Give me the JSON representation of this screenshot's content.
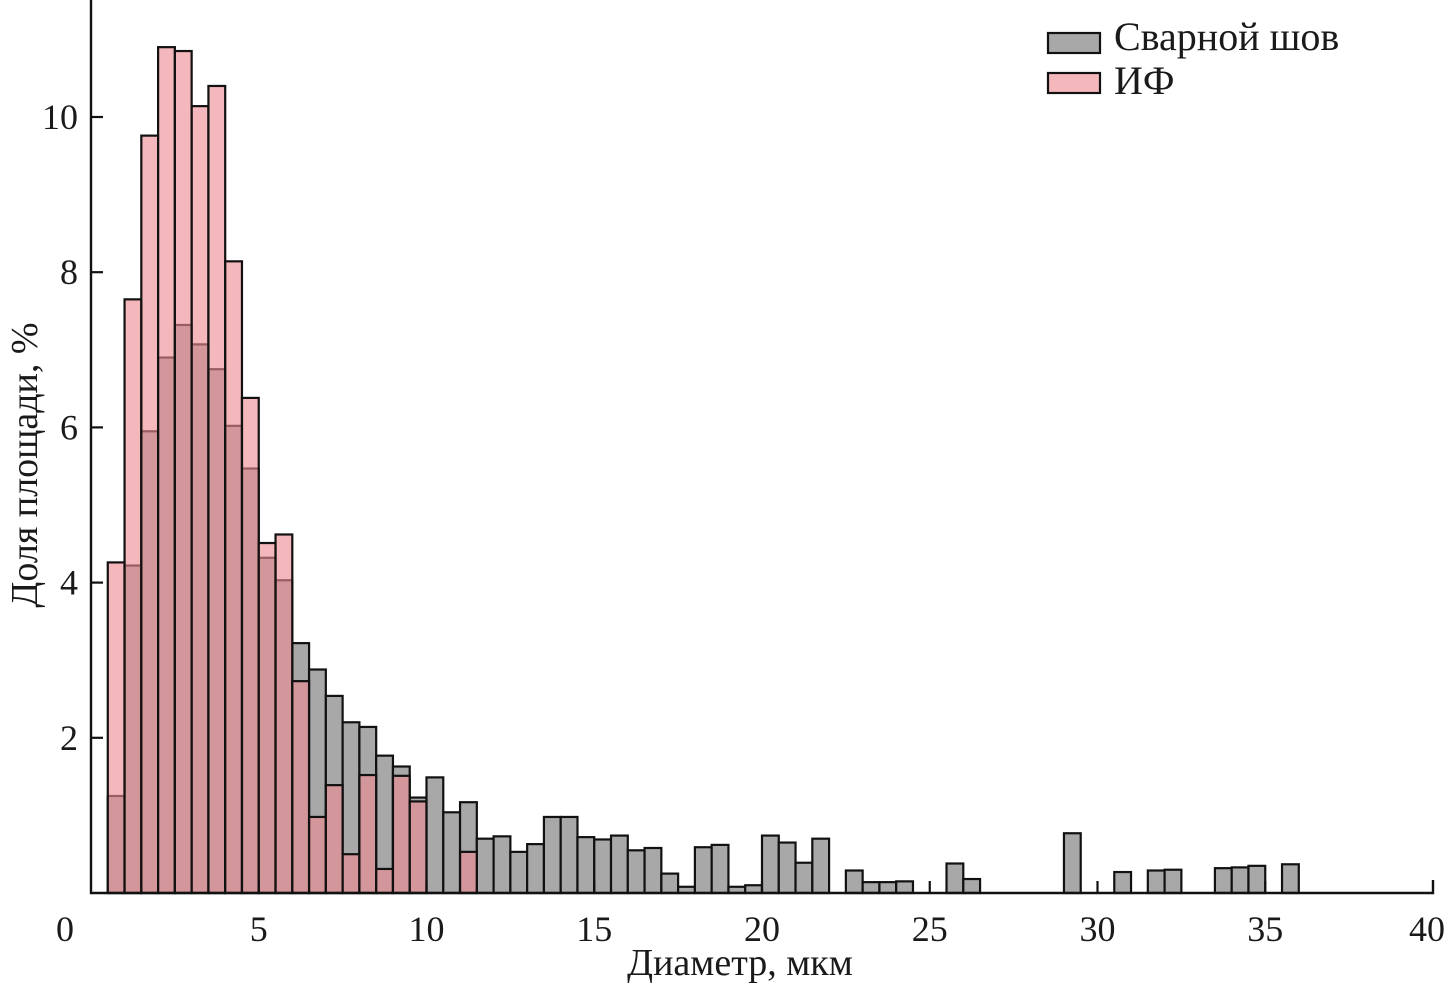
{
  "chart_data": {
    "type": "bar",
    "xlabel": "Диаметр, мкм",
    "ylabel": "Доля площади, %",
    "xlim": [
      0,
      40
    ],
    "ylim": [
      0,
      11.5
    ],
    "x_ticks": [
      0,
      5,
      10,
      15,
      20,
      25,
      30,
      35,
      40
    ],
    "y_ticks": [
      2,
      4,
      6,
      8,
      10
    ],
    "bin_width": 0.5,
    "grid": false,
    "legend_position": "top-right",
    "series": [
      {
        "name": "Сварной шов",
        "color": "#a8a8a8",
        "bins": [
          {
            "x": 0.75,
            "value": 1.25
          },
          {
            "x": 1.25,
            "value": 4.22
          },
          {
            "x": 1.75,
            "value": 5.95
          },
          {
            "x": 2.25,
            "value": 6.9
          },
          {
            "x": 2.75,
            "value": 7.32
          },
          {
            "x": 3.25,
            "value": 7.07
          },
          {
            "x": 3.75,
            "value": 6.75
          },
          {
            "x": 4.25,
            "value": 6.02
          },
          {
            "x": 4.75,
            "value": 5.47
          },
          {
            "x": 5.25,
            "value": 4.32
          },
          {
            "x": 5.75,
            "value": 4.03
          },
          {
            "x": 6.25,
            "value": 3.22
          },
          {
            "x": 6.75,
            "value": 2.88
          },
          {
            "x": 7.25,
            "value": 2.54
          },
          {
            "x": 7.75,
            "value": 2.2
          },
          {
            "x": 8.25,
            "value": 2.14
          },
          {
            "x": 8.75,
            "value": 1.77
          },
          {
            "x": 9.25,
            "value": 1.63
          },
          {
            "x": 9.75,
            "value": 1.23
          },
          {
            "x": 10.25,
            "value": 1.49
          },
          {
            "x": 10.75,
            "value": 1.04
          },
          {
            "x": 11.25,
            "value": 1.17
          },
          {
            "x": 11.75,
            "value": 0.7
          },
          {
            "x": 12.25,
            "value": 0.73
          },
          {
            "x": 12.75,
            "value": 0.53
          },
          {
            "x": 13.25,
            "value": 0.63
          },
          {
            "x": 13.75,
            "value": 0.98
          },
          {
            "x": 14.25,
            "value": 0.98
          },
          {
            "x": 14.75,
            "value": 0.72
          },
          {
            "x": 15.25,
            "value": 0.69
          },
          {
            "x": 15.75,
            "value": 0.74
          },
          {
            "x": 16.25,
            "value": 0.55
          },
          {
            "x": 16.75,
            "value": 0.58
          },
          {
            "x": 17.25,
            "value": 0.25
          },
          {
            "x": 17.75,
            "value": 0.08
          },
          {
            "x": 18.25,
            "value": 0.59
          },
          {
            "x": 18.75,
            "value": 0.62
          },
          {
            "x": 19.25,
            "value": 0.08
          },
          {
            "x": 19.75,
            "value": 0.1
          },
          {
            "x": 20.25,
            "value": 0.74
          },
          {
            "x": 20.75,
            "value": 0.65
          },
          {
            "x": 21.25,
            "value": 0.39
          },
          {
            "x": 21.75,
            "value": 0.7
          },
          {
            "x": 22.75,
            "value": 0.29
          },
          {
            "x": 23.25,
            "value": 0.14
          },
          {
            "x": 23.75,
            "value": 0.14
          },
          {
            "x": 24.25,
            "value": 0.15
          },
          {
            "x": 25.75,
            "value": 0.38
          },
          {
            "x": 26.25,
            "value": 0.18
          },
          {
            "x": 29.25,
            "value": 0.77
          },
          {
            "x": 30.75,
            "value": 0.27
          },
          {
            "x": 31.75,
            "value": 0.29
          },
          {
            "x": 32.25,
            "value": 0.3
          },
          {
            "x": 33.75,
            "value": 0.32
          },
          {
            "x": 34.25,
            "value": 0.33
          },
          {
            "x": 34.75,
            "value": 0.35
          },
          {
            "x": 35.75,
            "value": 0.37
          }
        ]
      },
      {
        "name": "ИФ",
        "color": "#ee8a92",
        "bins": [
          {
            "x": 0.75,
            "value": 4.26
          },
          {
            "x": 1.25,
            "value": 7.65
          },
          {
            "x": 1.75,
            "value": 9.76
          },
          {
            "x": 2.25,
            "value": 10.9
          },
          {
            "x": 2.75,
            "value": 10.85
          },
          {
            "x": 3.25,
            "value": 10.14
          },
          {
            "x": 3.75,
            "value": 10.4
          },
          {
            "x": 4.25,
            "value": 8.14
          },
          {
            "x": 4.75,
            "value": 6.38
          },
          {
            "x": 5.25,
            "value": 4.51
          },
          {
            "x": 5.75,
            "value": 4.62
          },
          {
            "x": 6.25,
            "value": 2.73
          },
          {
            "x": 6.75,
            "value": 0.98
          },
          {
            "x": 7.25,
            "value": 1.39
          },
          {
            "x": 7.75,
            "value": 0.5
          },
          {
            "x": 8.25,
            "value": 1.52
          },
          {
            "x": 8.75,
            "value": 0.31
          },
          {
            "x": 9.25,
            "value": 1.51
          },
          {
            "x": 9.75,
            "value": 1.18
          },
          {
            "x": 11.25,
            "value": 0.53
          }
        ]
      }
    ]
  }
}
